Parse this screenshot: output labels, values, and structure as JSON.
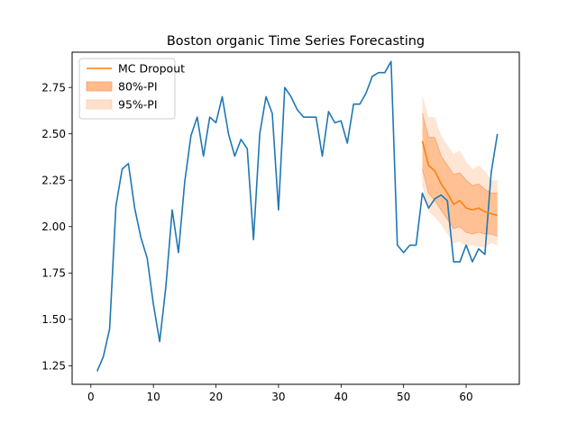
{
  "chart_data": {
    "type": "line",
    "title": "Boston organic Time Series Forecasting",
    "xlabel": "",
    "ylabel": "",
    "xlim": [
      -3,
      68.5
    ],
    "ylim": [
      1.15,
      2.94
    ],
    "xticks": [
      0,
      10,
      20,
      30,
      40,
      50,
      60
    ],
    "yticks": [
      1.25,
      1.5,
      1.75,
      2.0,
      2.25,
      2.5,
      2.75
    ],
    "ytick_labels": [
      "1.25",
      "1.50",
      "1.75",
      "2.00",
      "2.25",
      "2.50",
      "2.75"
    ],
    "grid": false,
    "legend_position": "top-left",
    "colors": {
      "actual": "#1f77b4",
      "forecast": "#ff7f0e",
      "pi80_fill": "#ffbb88",
      "pi95_fill": "#ffe0cc"
    },
    "actual": {
      "x": [
        1,
        2,
        3,
        4,
        5,
        6,
        7,
        8,
        9,
        10,
        11,
        12,
        13,
        14,
        15,
        16,
        17,
        18,
        19,
        20,
        21,
        22,
        23,
        24,
        25,
        26,
        27,
        28,
        29,
        30,
        31,
        32,
        33,
        34,
        35,
        36,
        37,
        38,
        39,
        40,
        41,
        42,
        43,
        44,
        45,
        46,
        47,
        48,
        49,
        50,
        51,
        52,
        53,
        54,
        55,
        56,
        57,
        58,
        59,
        60,
        61,
        62,
        63,
        64,
        65
      ],
      "y": [
        1.22,
        1.3,
        1.45,
        2.11,
        2.31,
        2.34,
        2.1,
        1.94,
        1.83,
        1.58,
        1.38,
        1.68,
        2.09,
        1.86,
        2.24,
        2.49,
        2.59,
        2.38,
        2.59,
        2.56,
        2.7,
        2.5,
        2.38,
        2.47,
        2.42,
        1.93,
        2.5,
        2.7,
        2.61,
        2.09,
        2.75,
        2.7,
        2.63,
        2.59,
        2.59,
        2.59,
        2.38,
        2.62,
        2.56,
        2.57,
        2.45,
        2.66,
        2.66,
        2.72,
        2.81,
        2.83,
        2.83,
        2.89,
        1.9,
        1.86,
        1.9,
        1.9,
        2.18,
        2.1,
        2.15,
        2.17,
        2.14,
        1.81,
        1.81,
        1.9,
        1.81,
        1.88,
        1.85,
        2.29,
        2.5
      ]
    },
    "forecast": {
      "name": "MC Dropout",
      "x": [
        53,
        54,
        55,
        56,
        57,
        58,
        59,
        60,
        61,
        62,
        63,
        64,
        65
      ],
      "y": [
        2.46,
        2.33,
        2.3,
        2.23,
        2.18,
        2.12,
        2.14,
        2.1,
        2.09,
        2.1,
        2.08,
        2.07,
        2.06
      ],
      "pi80_name": "80%-PI",
      "pi80_upper": [
        2.61,
        2.48,
        2.48,
        2.38,
        2.33,
        2.28,
        2.29,
        2.25,
        2.22,
        2.23,
        2.2,
        2.18,
        2.18
      ],
      "pi80_lower": [
        2.31,
        2.18,
        2.14,
        2.09,
        2.04,
        1.99,
        2.0,
        1.97,
        1.96,
        1.97,
        1.96,
        1.96,
        1.95
      ],
      "pi95_name": "95%-PI",
      "pi95_upper": [
        2.71,
        2.59,
        2.59,
        2.49,
        2.44,
        2.39,
        2.41,
        2.35,
        2.31,
        2.33,
        2.3,
        2.25,
        2.25
      ],
      "pi95_lower": [
        2.22,
        2.08,
        2.05,
        2.01,
        1.96,
        1.91,
        1.92,
        1.89,
        1.9,
        1.89,
        1.89,
        1.91,
        1.9
      ]
    }
  }
}
